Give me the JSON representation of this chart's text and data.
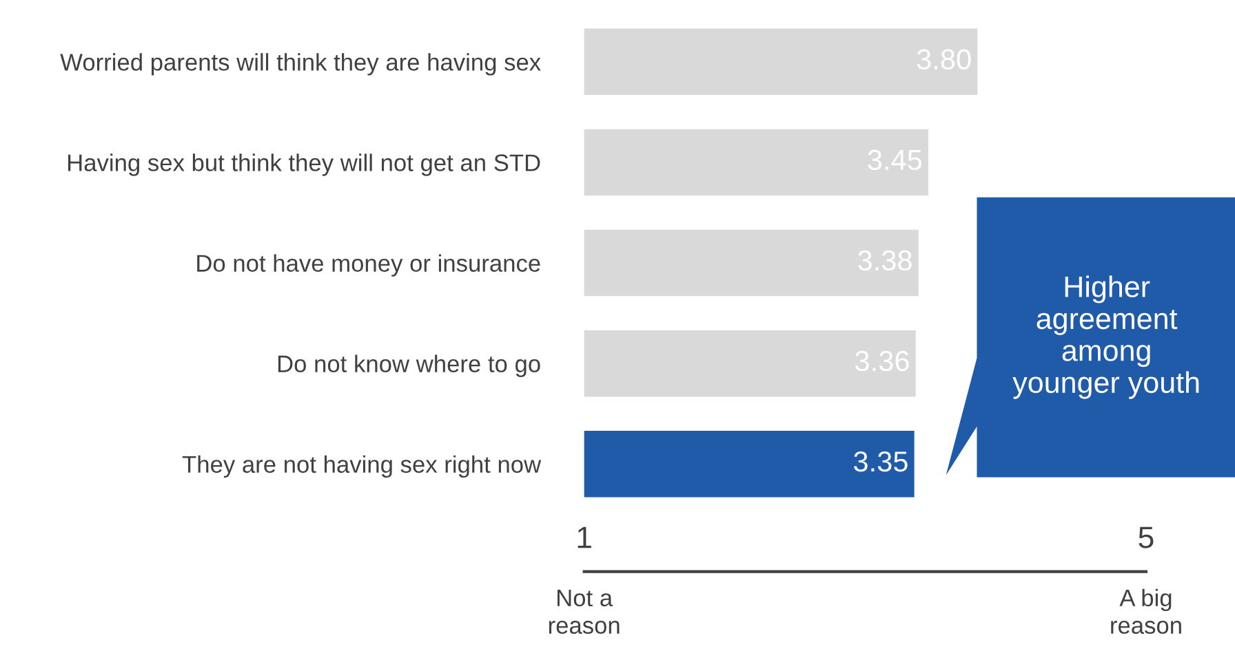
{
  "chart_data": {
    "type": "bar",
    "orientation": "horizontal",
    "categories": [
      "Worried parents will think they are having sex",
      "Having sex but think they will not get an STD",
      "Do not have money or insurance",
      "Do not know where to go",
      "They are not having sex right now"
    ],
    "values": [
      3.8,
      3.45,
      3.38,
      3.36,
      3.35
    ],
    "value_labels": [
      "3.80",
      "3.45",
      "3.38",
      "3.36",
      "3.35"
    ],
    "colors": [
      "#d9d9d9",
      "#d9d9d9",
      "#d9d9d9",
      "#d9d9d9",
      "#1f5ba8"
    ],
    "xlim": [
      1,
      5
    ],
    "xticks": [
      1,
      5
    ],
    "grid": false,
    "annotations": [
      "Not a\nreason",
      "A big\nreason",
      "Higher\nagreement\namong\nyounger youth"
    ]
  }
}
